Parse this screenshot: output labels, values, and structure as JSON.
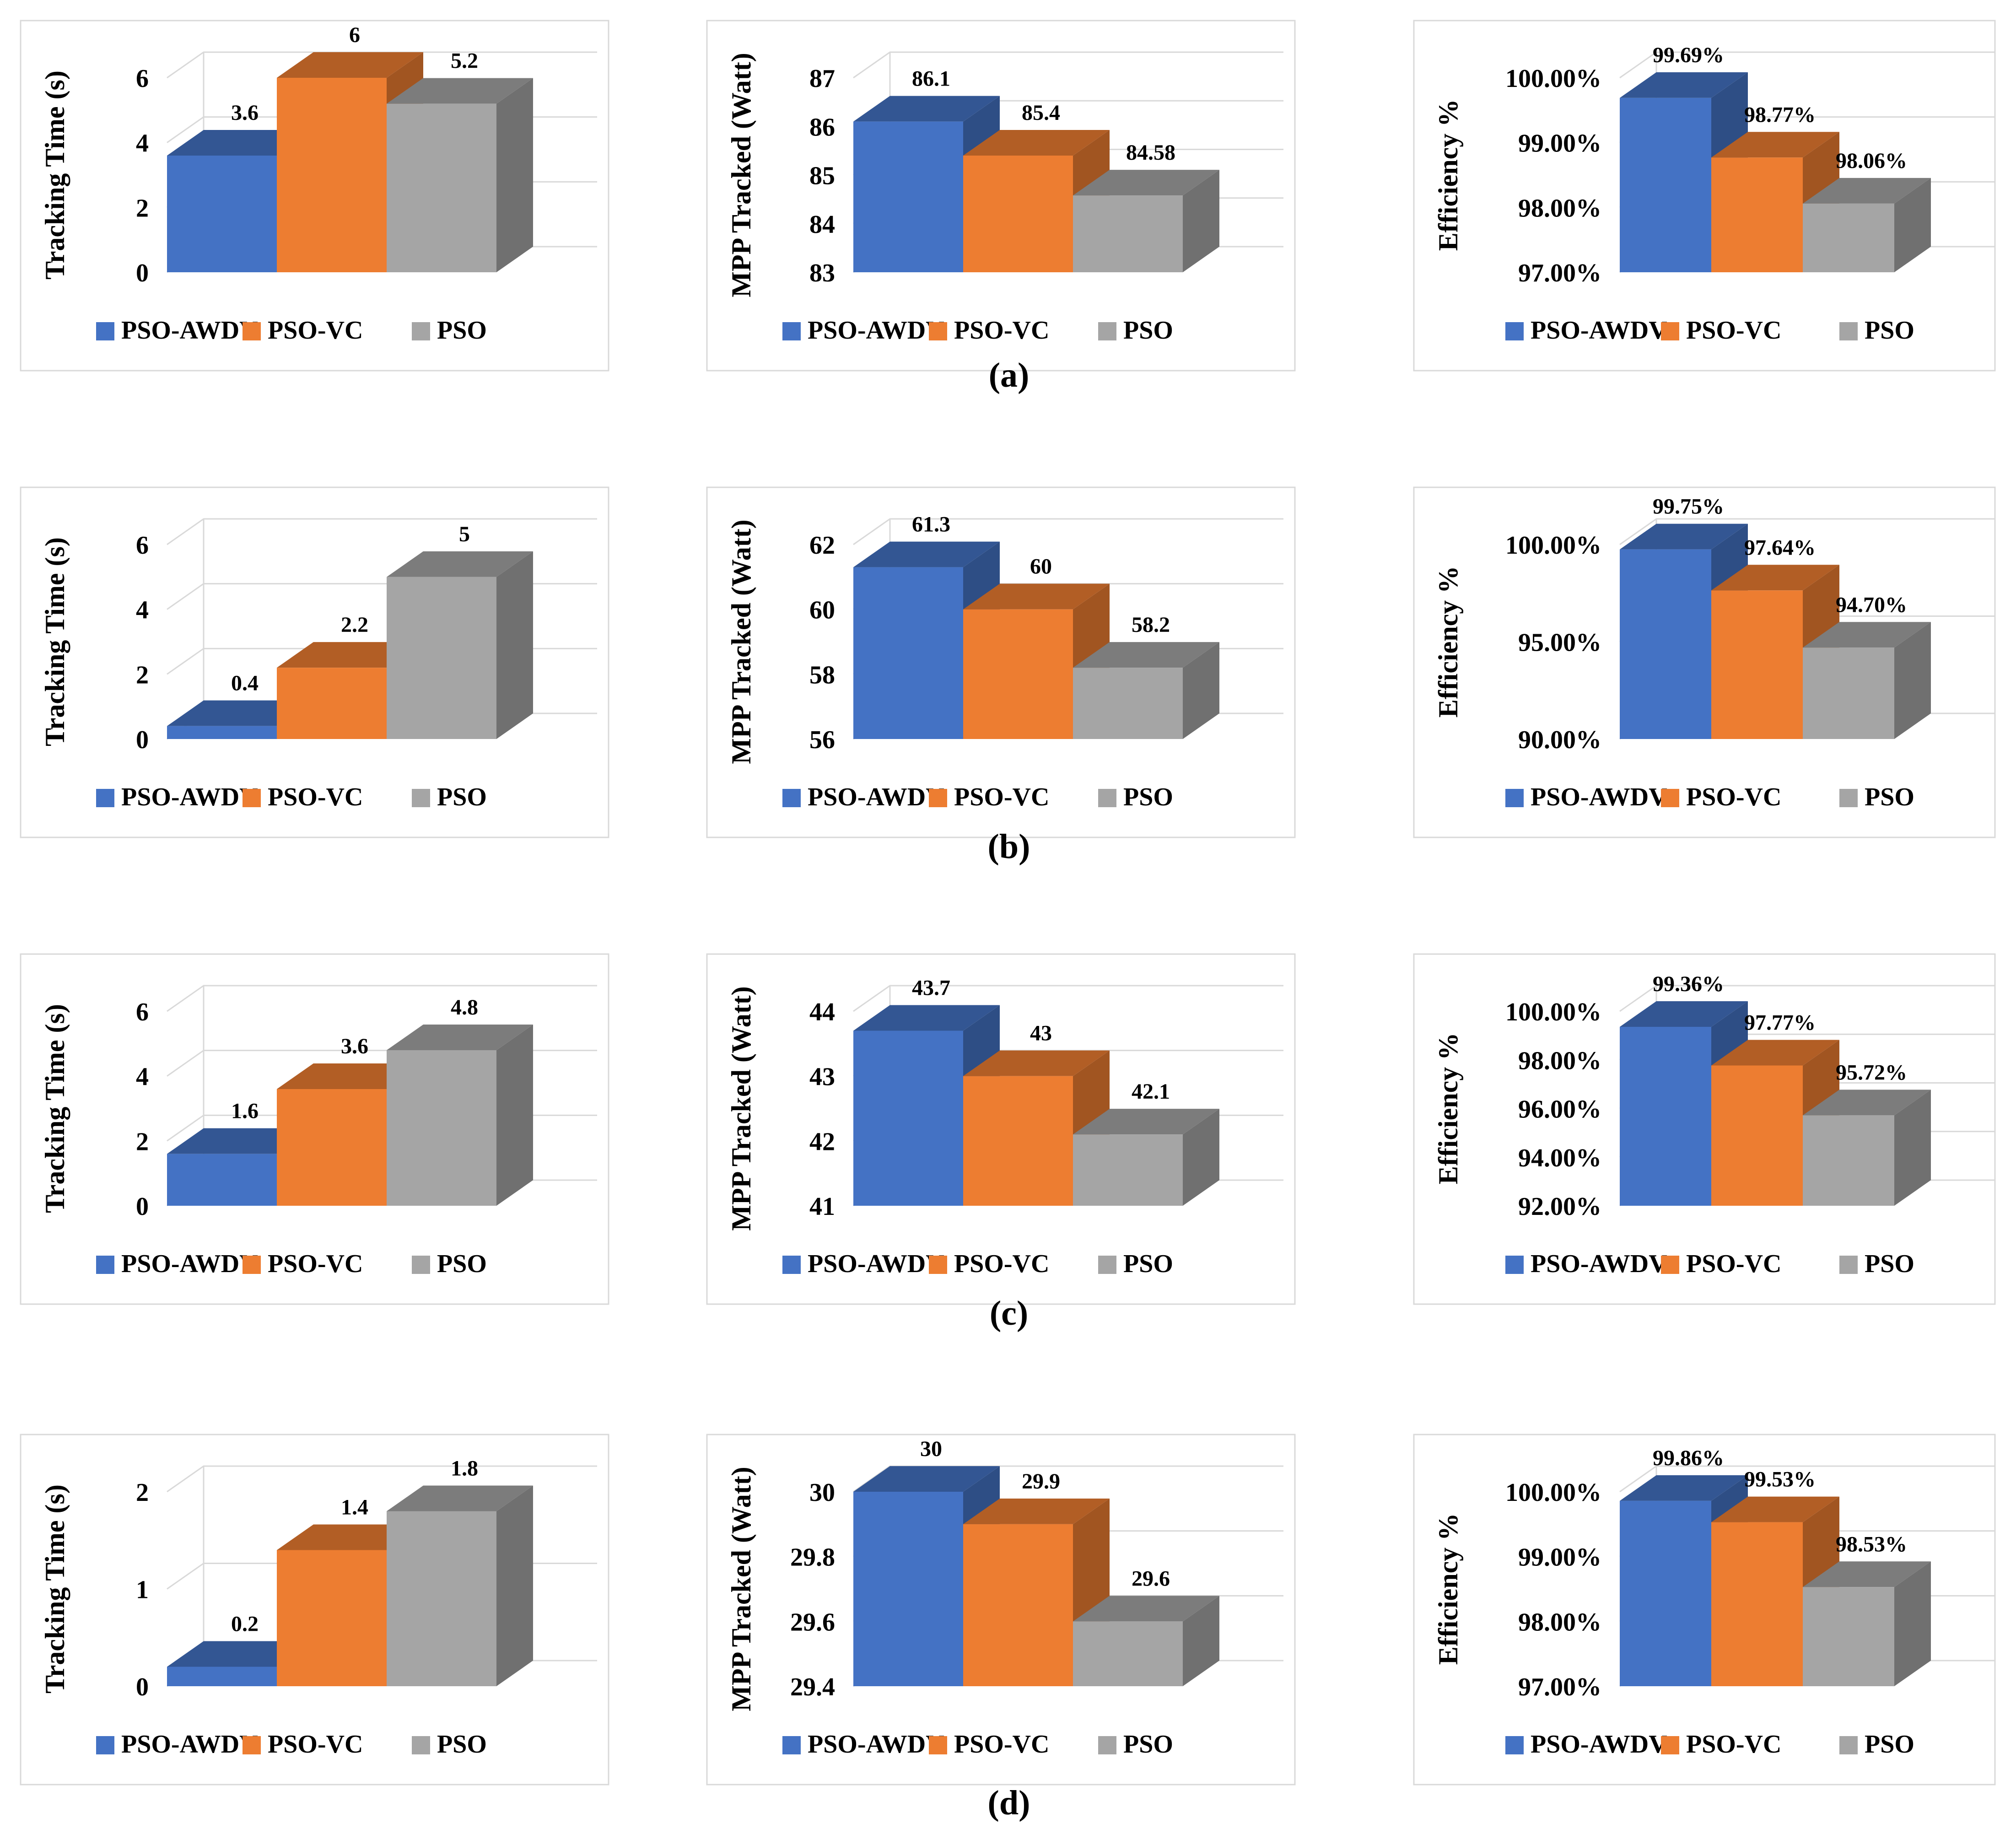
{
  "figure": {
    "colors": {
      "PSO-AWDV": "#4472C4",
      "PSO-VC": "#ED7D31",
      "PSO": "#A5A5A5"
    },
    "rows": [
      {
        "label": "(a)"
      },
      {
        "label": "(b)"
      },
      {
        "label": "(c)"
      },
      {
        "label": "(d)"
      }
    ]
  },
  "chart_data": [
    {
      "id": "a-time",
      "type": "bar",
      "style": "3d-column",
      "title": "",
      "xlabel": "",
      "ylabel": "Tracking Time (s)",
      "categories": [
        "PSO-AWDV",
        "PSO-VC",
        "PSO"
      ],
      "values": [
        3.6,
        6,
        5.2
      ],
      "labels": [
        "3.6",
        "6",
        "5.2"
      ],
      "ylim": [
        0,
        6
      ],
      "ticks": [
        0,
        2,
        4,
        6
      ],
      "tick_labels": [
        "0",
        "2",
        "4",
        "6"
      ],
      "grid": true,
      "legend": "bottom"
    },
    {
      "id": "a-mpp",
      "type": "bar",
      "style": "3d-column",
      "title": "",
      "xlabel": "",
      "ylabel": "MPP Tracked (Watt)",
      "categories": [
        "PSO-AWDV",
        "PSO-VC",
        "PSO"
      ],
      "values": [
        86.1,
        85.4,
        84.58
      ],
      "labels": [
        "86.1",
        "85.4",
        "84.58"
      ],
      "ylim": [
        83,
        87
      ],
      "ticks": [
        83,
        84,
        85,
        86,
        87
      ],
      "tick_labels": [
        "83",
        "84",
        "85",
        "86",
        "87"
      ],
      "grid": true,
      "legend": "bottom"
    },
    {
      "id": "a-eff",
      "type": "bar",
      "style": "3d-column",
      "title": "",
      "xlabel": "",
      "ylabel": "Efficiency %",
      "categories": [
        "PSO-AWDV",
        "PSO-VC",
        "PSO"
      ],
      "values": [
        99.69,
        98.77,
        98.06
      ],
      "labels": [
        "99.69%",
        "98.77%",
        "98.06%"
      ],
      "ylim": [
        97,
        100
      ],
      "ticks": [
        97,
        98,
        99,
        100
      ],
      "tick_labels": [
        "97.00%",
        "98.00%",
        "99.00%",
        "100.00%"
      ],
      "grid": true,
      "legend": "bottom"
    },
    {
      "id": "b-time",
      "type": "bar",
      "style": "3d-column",
      "title": "",
      "xlabel": "",
      "ylabel": "Tracking Time (s)",
      "categories": [
        "PSO-AWDV",
        "PSO-VC",
        "PSO"
      ],
      "values": [
        0.4,
        2.2,
        5
      ],
      "labels": [
        "0.4",
        "2.2",
        "5"
      ],
      "ylim": [
        0,
        6
      ],
      "ticks": [
        0,
        2,
        4,
        6
      ],
      "tick_labels": [
        "0",
        "2",
        "4",
        "6"
      ],
      "grid": true,
      "legend": "bottom"
    },
    {
      "id": "b-mpp",
      "type": "bar",
      "style": "3d-column",
      "title": "",
      "xlabel": "",
      "ylabel": "MPP Tracked (Watt)",
      "categories": [
        "PSO-AWDV",
        "PSO-VC",
        "PSO"
      ],
      "values": [
        61.3,
        60,
        58.2
      ],
      "labels": [
        "61.3",
        "60",
        "58.2"
      ],
      "ylim": [
        56,
        62
      ],
      "ticks": [
        56,
        58,
        60,
        62
      ],
      "tick_labels": [
        "56",
        "58",
        "60",
        "62"
      ],
      "grid": true,
      "legend": "bottom"
    },
    {
      "id": "b-eff",
      "type": "bar",
      "style": "3d-column",
      "title": "",
      "xlabel": "",
      "ylabel": "Efficiency %",
      "categories": [
        "PSO-AWDV",
        "PSO-VC",
        "PSO"
      ],
      "values": [
        99.75,
        97.64,
        94.7
      ],
      "labels": [
        "99.75%",
        "97.64%",
        "94.70%"
      ],
      "ylim": [
        90,
        100
      ],
      "ticks": [
        90,
        95,
        100
      ],
      "tick_labels": [
        "90.00%",
        "95.00%",
        "100.00%"
      ],
      "grid": true,
      "legend": "bottom"
    },
    {
      "id": "c-time",
      "type": "bar",
      "style": "3d-column",
      "title": "",
      "xlabel": "",
      "ylabel": "Tracking Time (s)",
      "categories": [
        "PSO-AWDV",
        "PSO-VC",
        "PSO"
      ],
      "values": [
        1.6,
        3.6,
        4.8
      ],
      "labels": [
        "1.6",
        "3.6",
        "4.8"
      ],
      "ylim": [
        0,
        6
      ],
      "ticks": [
        0,
        2,
        4,
        6
      ],
      "tick_labels": [
        "0",
        "2",
        "4",
        "6"
      ],
      "grid": true,
      "legend": "bottom"
    },
    {
      "id": "c-mpp",
      "type": "bar",
      "style": "3d-column",
      "title": "",
      "xlabel": "",
      "ylabel": "MPP Tracked (Watt)",
      "categories": [
        "PSO-AWDV",
        "PSO-VC",
        "PSO"
      ],
      "values": [
        43.7,
        43,
        42.1
      ],
      "labels": [
        "43.7",
        "43",
        "42.1"
      ],
      "ylim": [
        41,
        44
      ],
      "ticks": [
        41,
        42,
        43,
        44
      ],
      "tick_labels": [
        "41",
        "42",
        "43",
        "44"
      ],
      "grid": true,
      "legend": "bottom"
    },
    {
      "id": "c-eff",
      "type": "bar",
      "style": "3d-column",
      "title": "",
      "xlabel": "",
      "ylabel": "Efficiency %",
      "categories": [
        "PSO-AWDV",
        "PSO-VC",
        "PSO"
      ],
      "values": [
        99.36,
        97.77,
        95.72
      ],
      "labels": [
        "99.36%",
        "97.77%",
        "95.72%"
      ],
      "ylim": [
        92,
        100
      ],
      "ticks": [
        92,
        94,
        96,
        98,
        100
      ],
      "tick_labels": [
        "92.00%",
        "94.00%",
        "96.00%",
        "98.00%",
        "100.00%"
      ],
      "grid": true,
      "legend": "bottom"
    },
    {
      "id": "d-time",
      "type": "bar",
      "style": "3d-column",
      "title": "",
      "xlabel": "",
      "ylabel": "Tracking Time (s)",
      "categories": [
        "PSO-AWDV",
        "PSO-VC",
        "PSO"
      ],
      "values": [
        0.2,
        1.4,
        1.8
      ],
      "labels": [
        "0.2",
        "1.4",
        "1.8"
      ],
      "ylim": [
        0,
        2
      ],
      "ticks": [
        0,
        1,
        2
      ],
      "tick_labels": [
        "0",
        "1",
        "2"
      ],
      "grid": true,
      "legend": "bottom"
    },
    {
      "id": "d-mpp",
      "type": "bar",
      "style": "3d-column",
      "title": "",
      "xlabel": "",
      "ylabel": "MPP Tracked (Watt)",
      "categories": [
        "PSO-AWDV",
        "PSO-VC",
        "PSO"
      ],
      "values": [
        30,
        29.9,
        29.6
      ],
      "labels": [
        "30",
        "29.9",
        "29.6"
      ],
      "ylim": [
        29.4,
        30
      ],
      "ticks": [
        29.4,
        29.6,
        29.8,
        30
      ],
      "tick_labels": [
        "29.4",
        "29.6",
        "29.8",
        "30"
      ],
      "grid": true,
      "legend": "bottom"
    },
    {
      "id": "d-eff",
      "type": "bar",
      "style": "3d-column",
      "title": "",
      "xlabel": "",
      "ylabel": "Efficiency %",
      "categories": [
        "PSO-AWDV",
        "PSO-VC",
        "PSO"
      ],
      "values": [
        99.86,
        99.53,
        98.53
      ],
      "labels": [
        "99.86%",
        "99.53%",
        "98.53%"
      ],
      "ylim": [
        97,
        100
      ],
      "ticks": [
        97,
        98,
        99,
        100
      ],
      "tick_labels": [
        "97.00%",
        "98.00%",
        "99.00%",
        "100.00%"
      ],
      "grid": true,
      "legend": "bottom"
    }
  ]
}
